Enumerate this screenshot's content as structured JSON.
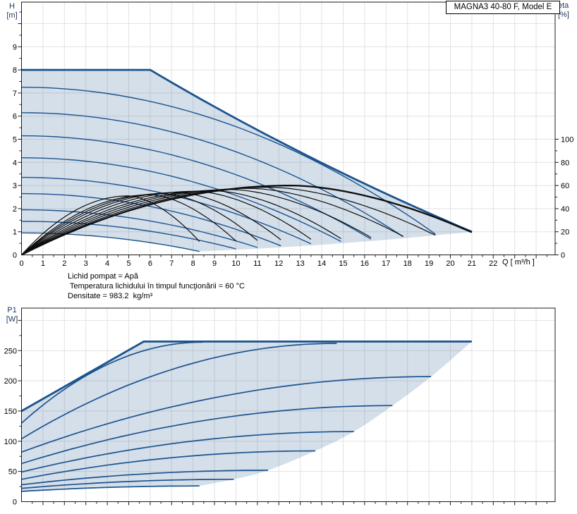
{
  "title_box": "MAGNA3 40-80 F, Model E",
  "info_lines": [
    "Lichid pompat = Apă",
    " Temperatura lichidului în timpul funcţionării = 60 °C",
    "Densitate = 983.2  kg/m³"
  ],
  "colors": {
    "curve_blue": "#1b538e",
    "fill_blue": "rgba(27,83,142,0.19)",
    "eta_black": "#0d0d0d",
    "grid": "#e2e2e2",
    "frame": "#1a1a1a",
    "tick_label": "#000000",
    "axis_title_navy": "#1f3966"
  },
  "chart_data": [
    {
      "type": "line",
      "name": "head-flow-efficiency-chart",
      "ylabel": [
        "H",
        "[m]"
      ],
      "ylabel_right": [
        "eta",
        "[%]"
      ],
      "xlabel": "Q [ m³/h ]",
      "xlim": [
        0,
        24.9
      ],
      "ylim": [
        0,
        10.8
      ],
      "x_tick_labels": [
        0,
        1,
        2,
        3,
        4,
        5,
        6,
        7,
        8,
        9,
        10,
        11,
        12,
        13,
        14,
        15,
        16,
        17,
        18,
        19,
        20,
        21,
        22
      ],
      "y_tick_labels": [
        0,
        1,
        2,
        3,
        4,
        5,
        6,
        7,
        8,
        9
      ],
      "eta_tick_labels": [
        0,
        20,
        40,
        60,
        80,
        100
      ],
      "eta_per_H": 20,
      "grid": true,
      "envelope": {
        "start": [
          0,
          8
        ],
        "knee": [
          6,
          8
        ],
        "ctrl": [
          13,
          4.15
        ],
        "end": [
          21,
          1
        ]
      },
      "speed_curves": [
        {
          "h0": 7.25,
          "qe": 19.3,
          "he": 0.9
        },
        {
          "h0": 6.15,
          "qe": 17.8,
          "he": 0.79
        },
        {
          "h0": 5.15,
          "qe": 16.3,
          "he": 0.68
        },
        {
          "h0": 4.2,
          "qe": 14.9,
          "he": 0.58
        },
        {
          "h0": 3.35,
          "qe": 13.5,
          "he": 0.48
        },
        {
          "h0": 2.65,
          "qe": 12.1,
          "he": 0.39
        },
        {
          "h0": 1.95,
          "qe": 11.0,
          "he": 0.32
        },
        {
          "h0": 1.45,
          "qe": 10.0,
          "he": 0.26
        },
        {
          "h0": 0.95,
          "qe": 8.3,
          "he": 0.15
        }
      ],
      "lower_boundary_ctrl": [
        14.5,
        0.38
      ],
      "eta_main": {
        "qe": 21,
        "peak": 60,
        "end": 19.5
      },
      "eta_curves": [
        {
          "qe": 19.3,
          "peak": 58.5,
          "end": 17
        },
        {
          "qe": 17.8,
          "peak": 57.5,
          "end": 16
        },
        {
          "qe": 16.3,
          "peak": 56.5,
          "end": 15
        },
        {
          "qe": 14.9,
          "peak": 55.5,
          "end": 14
        },
        {
          "qe": 13.5,
          "peak": 55.0,
          "end": 13.5
        },
        {
          "qe": 12.1,
          "peak": 54.0,
          "end": 13
        },
        {
          "qe": 11.0,
          "peak": 53.0,
          "end": 12.5
        },
        {
          "qe": 10.0,
          "peak": 52.0,
          "end": 12
        },
        {
          "qe": 8.3,
          "peak": 51.0,
          "end": 11.5
        }
      ]
    },
    {
      "type": "line",
      "name": "power-input-chart",
      "ylabel": [
        "P1",
        "[W]"
      ],
      "xlim": [
        0,
        24.9
      ],
      "ylim": [
        0,
        320
      ],
      "y_tick_labels": [
        0,
        50,
        100,
        150,
        200,
        250
      ],
      "x_origin_label": 0,
      "grid": true,
      "envelope": {
        "start": [
          0,
          150
        ],
        "knee": [
          5.7,
          265
        ],
        "end": [
          21,
          265
        ]
      },
      "power_curves": [
        {
          "p0": 130,
          "qe": 8.45,
          "pe": 264
        },
        {
          "p0": 104,
          "qe": 14.7,
          "pe": 262
        },
        {
          "p0": 82,
          "qe": 19.1,
          "pe": 207
        },
        {
          "p0": 63,
          "qe": 17.3,
          "pe": 159
        },
        {
          "p0": 49,
          "qe": 15.5,
          "pe": 116
        },
        {
          "p0": 37,
          "qe": 13.7,
          "pe": 84
        },
        {
          "p0": 28,
          "qe": 11.5,
          "pe": 52
        },
        {
          "p0": 22,
          "qe": 9.9,
          "pe": 37
        },
        {
          "p0": 17,
          "qe": 8.3,
          "pe": 26
        }
      ],
      "boundary": [
        [
          8.3,
          26
        ],
        [
          9.9,
          37
        ],
        [
          11.5,
          52
        ],
        [
          13.7,
          84
        ],
        [
          15.5,
          116
        ],
        [
          17.3,
          159
        ],
        [
          19.1,
          207
        ],
        [
          21,
          265
        ]
      ]
    }
  ]
}
